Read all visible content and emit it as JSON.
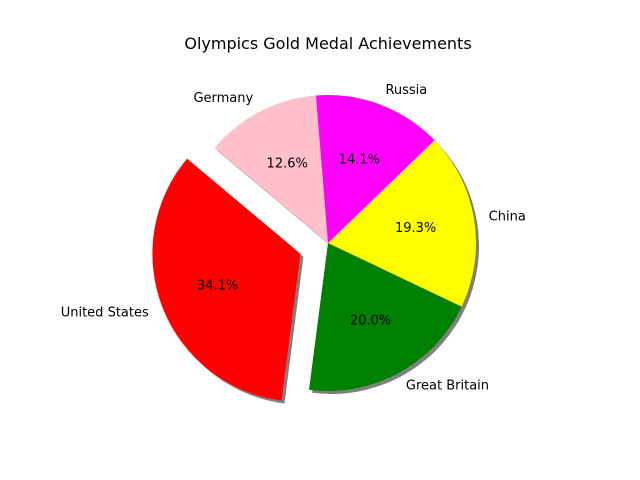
{
  "chart_data": {
    "type": "pie",
    "title": "Olympics Gold Medal Achievements",
    "start_angle_deg": 140,
    "direction": "counterclockwise",
    "shadow": true,
    "slices": [
      {
        "label": "United States",
        "value": 34.1,
        "pct_label": "34.1%",
        "color": "#ff0000",
        "exploded": true
      },
      {
        "label": "Great Britain",
        "value": 20.0,
        "pct_label": "20.0%",
        "color": "#008000",
        "exploded": false
      },
      {
        "label": "China",
        "value": 19.3,
        "pct_label": "19.3%",
        "color": "#ffff00",
        "exploded": false
      },
      {
        "label": "Russia",
        "value": 14.1,
        "pct_label": "14.1%",
        "color": "#ff00ff",
        "exploded": false
      },
      {
        "label": "Germany",
        "value": 12.6,
        "pct_label": "12.6%",
        "color": "#ffc0cb",
        "exploded": false
      }
    ]
  }
}
